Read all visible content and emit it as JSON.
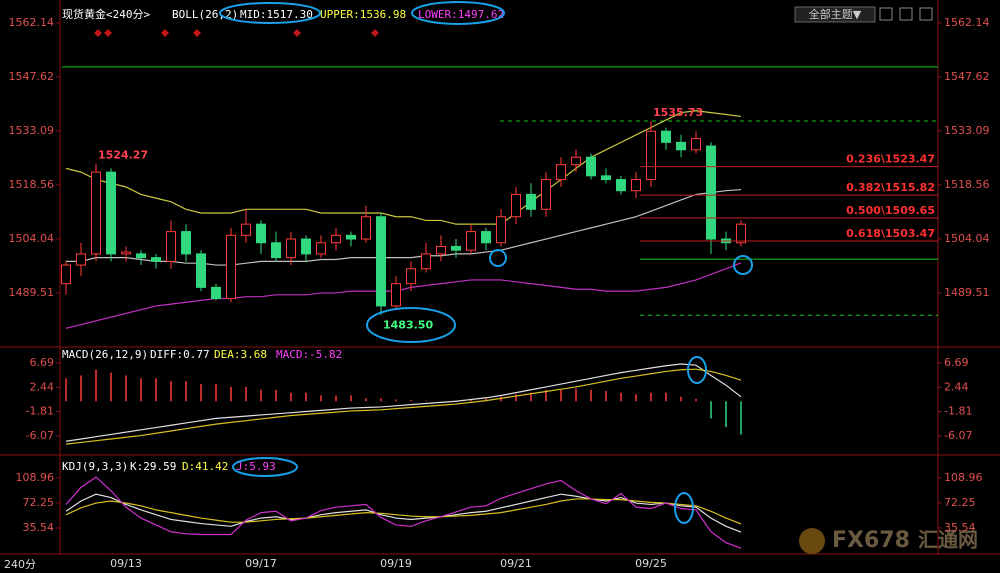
{
  "ui": {
    "theme_button": "全部主题▼",
    "period": "240分",
    "watermark_logo": "FX678",
    "watermark_text": "汇通网"
  },
  "chart_data": [
    {
      "type": "candlestick",
      "header": [
        {
          "text": "现货黄金<240分>",
          "color": "#ffffff"
        },
        {
          "text": "BOLL(26,2)",
          "color": "#ffffff"
        },
        {
          "text": "MID:1517.30",
          "color": "#ffffff"
        },
        {
          "text": "UPPER:1536.98",
          "color": "#ffff40"
        },
        {
          "text": "LOWER:1497.62",
          "color": "#ff40ff"
        }
      ],
      "categories": [
        null,
        null,
        null,
        null,
        "09/13",
        null,
        null,
        null,
        null,
        null,
        null,
        null,
        null,
        "09/17",
        null,
        null,
        null,
        null,
        null,
        null,
        null,
        null,
        "09/19",
        null,
        null,
        null,
        null,
        null,
        null,
        null,
        "09/21",
        null,
        null,
        null,
        null,
        null,
        null,
        null,
        null,
        "09/25",
        null,
        null,
        null,
        null,
        null,
        null
      ],
      "open": [
        1492,
        1497,
        1500,
        1522,
        1500,
        1500,
        1499,
        1498,
        1506,
        1500,
        1491,
        1488,
        1505,
        1508,
        1503,
        1499,
        1504,
        1500,
        1503,
        1505,
        1504,
        1510,
        1486,
        1492,
        1496,
        1500,
        1502,
        1501,
        1506,
        1503,
        1510,
        1516,
        1512,
        1520,
        1524,
        1526,
        1521,
        1520,
        1517,
        1520,
        1533,
        1530,
        1528,
        1529,
        1504,
        1503
      ],
      "high": [
        1498,
        1503,
        1524.27,
        1523,
        1502,
        1501,
        1500,
        1509,
        1508,
        1501,
        1492,
        1507,
        1512,
        1509,
        1506,
        1506,
        1505,
        1505,
        1507,
        1506,
        1513,
        1511,
        1494,
        1498,
        1503,
        1505,
        1504,
        1508,
        1507,
        1512,
        1518,
        1519,
        1522,
        1526,
        1528,
        1527,
        1523,
        1521,
        1522,
        1535.73,
        1534,
        1532,
        1533,
        1530,
        1506,
        1509
      ],
      "low": [
        1489,
        1494,
        1498,
        1498,
        1498,
        1497,
        1496,
        1496,
        1498,
        1490,
        1487.5,
        1487,
        1503,
        1500,
        1498,
        1497,
        1498,
        1499,
        1501,
        1502,
        1503,
        1483.5,
        1485,
        1490,
        1495,
        1498,
        1499,
        1500,
        1501,
        1502,
        1508,
        1510,
        1510,
        1518,
        1522,
        1520,
        1519,
        1516,
        1515,
        1518,
        1528,
        1526,
        1527,
        1500,
        1501,
        1502
      ],
      "close": [
        1497,
        1500,
        1522,
        1500,
        1500.5,
        1499,
        1498,
        1506,
        1500,
        1491,
        1488,
        1505,
        1508,
        1503,
        1499,
        1504,
        1500,
        1503,
        1505,
        1504,
        1510,
        1486,
        1492,
        1496,
        1500,
        1502,
        1501,
        1506,
        1503,
        1510,
        1516,
        1512,
        1520,
        1524,
        1526,
        1521,
        1520,
        1517,
        1520,
        1533,
        1530,
        1528,
        1531,
        1504,
        1503,
        1508
      ],
      "colors": {
        "up": "#ff3a3a",
        "down": "#30d880"
      },
      "lines": [
        {
          "color": "#c8c840",
          "values": [
            1523,
            1522,
            1520,
            1519,
            1518,
            1516,
            1515,
            1514,
            1512,
            1511,
            1511,
            1511,
            1512,
            1512,
            1512,
            1512,
            1512,
            1511,
            1511,
            1511,
            1511,
            1511,
            1510,
            1510,
            1509,
            1509,
            1508,
            1508,
            1508,
            1508,
            1511,
            1514,
            1517,
            1520,
            1523,
            1526,
            1528,
            1530,
            1532,
            1534,
            1536,
            1538,
            1538.5,
            1538,
            1537.5,
            1536.98
          ]
        },
        {
          "color": "#c0c0c0",
          "values": [
            1498,
            1498,
            1499,
            1499,
            1499,
            1498.5,
            1498,
            1498,
            1497.5,
            1497.5,
            1497,
            1497,
            1497.5,
            1498,
            1498,
            1498,
            1498,
            1498.5,
            1498.5,
            1499,
            1499,
            1499,
            1499,
            1499,
            1499.5,
            1499.5,
            1500,
            1500,
            1500.5,
            1501,
            1502,
            1503,
            1504,
            1505,
            1506,
            1507,
            1508,
            1509,
            1510,
            1511.5,
            1513,
            1514.5,
            1516,
            1516.5,
            1517,
            1517.3
          ]
        },
        {
          "color": "#c030c0",
          "values": [
            1480,
            1481,
            1482,
            1483,
            1484,
            1485,
            1486,
            1486.5,
            1487,
            1487.5,
            1488,
            1488,
            1488.5,
            1488.5,
            1489,
            1489,
            1489,
            1489.5,
            1489.5,
            1490,
            1490,
            1490,
            1490,
            1491,
            1491.5,
            1492,
            1492.5,
            1493,
            1493,
            1493,
            1492.5,
            1492,
            1491.5,
            1491,
            1490.5,
            1490.5,
            1490,
            1490,
            1490,
            1490.5,
            1491,
            1492,
            1493,
            1494.5,
            1496,
            1497.62
          ]
        }
      ],
      "annotations": [
        {
          "text": "1524.27",
          "value": 1524.27,
          "color": "#ff4050"
        },
        {
          "text": "1483.50",
          "value": 1483.5,
          "color": "#40ff80"
        },
        {
          "text": "1535.73",
          "value": 1535.73,
          "color": "#ff4050"
        }
      ],
      "fib": [
        {
          "label": "0.236\\1523.47",
          "value": 1523.47
        },
        {
          "label": "0.382\\1515.82",
          "value": 1515.82
        },
        {
          "label": "0.500\\1509.65",
          "value": 1509.65
        },
        {
          "label": "0.618\\1503.47",
          "value": 1503.47
        }
      ],
      "levels": [
        {
          "value": 1550.3,
          "style": "solid"
        },
        {
          "value": 1535.73,
          "style": "dashed"
        },
        {
          "value": 1498.6,
          "style": "solid"
        },
        {
          "value": 1483.5,
          "style": "dashed"
        }
      ],
      "ylim": [
        1475.5,
        1565.6
      ],
      "yticks": [
        1562.14,
        1547.62,
        1533.09,
        1518.56,
        1504.04,
        1489.51
      ]
    },
    {
      "type": "macd",
      "header": [
        {
          "text": "MACD(26,12,9)",
          "color": "#ffffff"
        },
        {
          "text": "DIFF:0.77",
          "color": "#ffffff"
        },
        {
          "text": "DEA:3.68",
          "color": "#ffff40"
        },
        {
          "text": "MACD:-5.82",
          "color": "#ff40ff"
        }
      ],
      "colors": {
        "up": "#ff3a3a",
        "down": "#30d880"
      },
      "bars": [
        4,
        4.5,
        5.5,
        5,
        4.5,
        4,
        4,
        3.5,
        3.5,
        3,
        3,
        2.5,
        2.5,
        2,
        2,
        1.5,
        1.5,
        1,
        1,
        1,
        0.5,
        0.5,
        0.3,
        0.2,
        0.1,
        0,
        0.1,
        0.2,
        0.5,
        0.8,
        1.2,
        1.5,
        2,
        2,
        2.2,
        2,
        1.8,
        1.5,
        1.2,
        1.5,
        1.5,
        0.8,
        0.4,
        -3,
        -4.5,
        -5.82
      ],
      "lines": [
        {
          "color": "#e0e0e0",
          "values": [
            -7,
            -6.6,
            -6.2,
            -5.8,
            -5.4,
            -5,
            -4.6,
            -4.2,
            -3.8,
            -3.4,
            -3,
            -2.8,
            -2.6,
            -2.4,
            -2.2,
            -2,
            -1.8,
            -1.6,
            -1.4,
            -1.2,
            -1.1,
            -1,
            -0.8,
            -0.6,
            -0.4,
            -0.2,
            0,
            0.3,
            0.6,
            1,
            1.5,
            2,
            2.5,
            3,
            3.5,
            4,
            4.5,
            5,
            5.4,
            5.8,
            6.2,
            6.5,
            6.3,
            4.5,
            2.8,
            0.77
          ]
        },
        {
          "color": "#d8c020",
          "values": [
            -7.5,
            -7.2,
            -6.9,
            -6.6,
            -6.3,
            -6,
            -5.6,
            -5.2,
            -4.8,
            -4.4,
            -4,
            -3.7,
            -3.4,
            -3.1,
            -2.8,
            -2.5,
            -2.3,
            -2.1,
            -1.9,
            -1.7,
            -1.6,
            -1.5,
            -1.3,
            -1.1,
            -0.9,
            -0.7,
            -0.5,
            -0.2,
            0.1,
            0.5,
            0.9,
            1.3,
            1.7,
            2.1,
            2.5,
            3,
            3.5,
            4,
            4.4,
            4.8,
            5.2,
            5.5,
            5.6,
            5.2,
            4.5,
            3.68
          ]
        }
      ],
      "ylim": [
        -8,
        8.6
      ],
      "yticks": [
        6.69,
        2.44,
        -1.81,
        -6.07
      ]
    },
    {
      "type": "kdj",
      "header": [
        {
          "text": "KDJ(9,3,3)",
          "color": "#ffffff"
        },
        {
          "text": "K:29.59",
          "color": "#ffffff"
        },
        {
          "text": "D:41.42",
          "color": "#ffff40"
        },
        {
          "text": "J:5.93",
          "color": "#ff40ff"
        }
      ],
      "lines": [
        {
          "color": "#e0e0e0",
          "values": [
            60,
            75,
            85,
            80,
            70,
            62,
            55,
            48,
            45,
            42,
            40,
            38,
            45,
            50,
            52,
            48,
            50,
            55,
            58,
            60,
            62,
            55,
            50,
            48,
            50,
            52,
            55,
            58,
            60,
            65,
            70,
            75,
            80,
            85,
            82,
            78,
            75,
            80,
            72,
            70,
            72,
            68,
            66,
            50,
            38,
            29.59
          ]
        },
        {
          "color": "#d8c020",
          "values": [
            55,
            65,
            72,
            75,
            72,
            68,
            62,
            58,
            54,
            50,
            47,
            44,
            44,
            46,
            48,
            49,
            50,
            52,
            54,
            56,
            58,
            57,
            55,
            53,
            52,
            52,
            53,
            54,
            56,
            58,
            62,
            66,
            70,
            75,
            78,
            78,
            77,
            77,
            75,
            73,
            72,
            70,
            68,
            60,
            50,
            41.42
          ]
        },
        {
          "color": "#d030d0",
          "values": [
            70,
            95,
            110,
            90,
            66,
            50,
            40,
            30,
            27,
            26,
            26,
            26,
            47,
            58,
            60,
            46,
            50,
            61,
            66,
            68,
            70,
            51,
            40,
            38,
            46,
            52,
            59,
            66,
            68,
            79,
            86,
            93,
            100,
            105,
            90,
            78,
            71,
            86,
            66,
            64,
            72,
            64,
            62,
            30,
            14,
            5.93
          ]
        }
      ],
      "ylim": [
        -4,
        135
      ],
      "yticks": [
        108.96,
        72.25,
        35.54
      ]
    }
  ]
}
